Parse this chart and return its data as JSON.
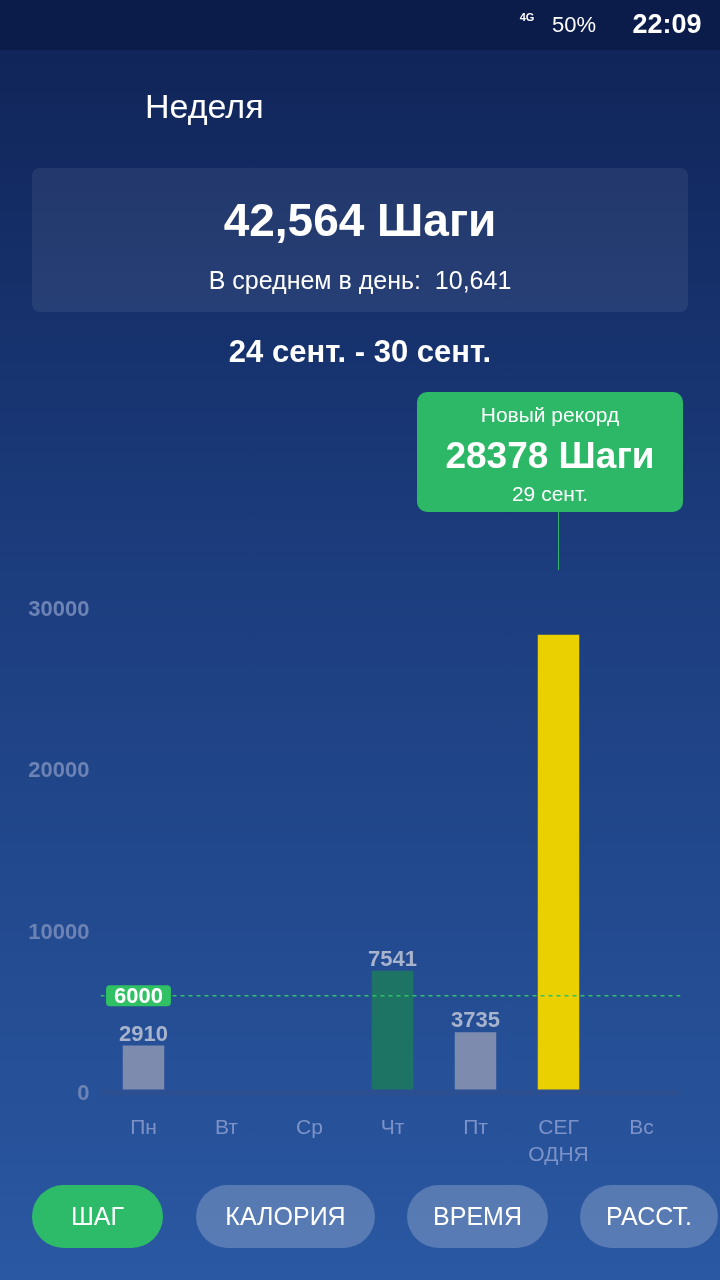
{
  "chart_data": {
    "type": "bar",
    "title": "Неделя",
    "categories": [
      "Пн",
      "Вт",
      "Ср",
      "Чт",
      "Пт",
      "СЕГ\nОДНЯ",
      "Вс"
    ],
    "values": [
      2910,
      null,
      null,
      7541,
      3735,
      28378,
      null
    ],
    "colors": [
      "#7d8cae",
      "#7d8cae",
      "#7d8cae",
      "#1e7464",
      "#7d8cae",
      "#ebd000",
      "#7d8cae"
    ],
    "value_labels": [
      "2910",
      null,
      null,
      "7541",
      "3735",
      null,
      null
    ],
    "ylim": [
      0,
      30000
    ],
    "yticks": [
      0,
      10000,
      20000,
      30000
    ],
    "grid": false,
    "ref_lines": [
      {
        "axis": "y",
        "value": 6000,
        "label": "6000",
        "color": "#2fc164",
        "line_style": "dashed"
      }
    ],
    "annotations": [
      "42,564 Шаги",
      "В среднем в день:  10,641",
      "24 сент. - 30 сент.",
      "Новый рекорд",
      "28378 Шаги",
      "29 сент.",
      "ШАГ",
      "КАЛОРИЯ",
      "ВРЕМЯ",
      "РАССТ.",
      "4G",
      "50%",
      "22:09"
    ]
  }
}
